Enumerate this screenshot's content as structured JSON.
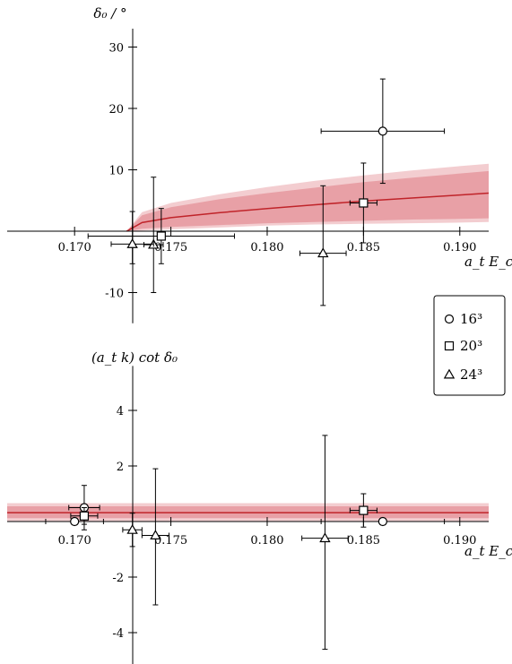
{
  "chart_data": [
    {
      "type": "scatter",
      "title": "",
      "ylabel": "δ₀ / °",
      "xlabel": "a_t E_cm",
      "xlim": [
        0.1665,
        0.1915
      ],
      "ylim": [
        -15,
        33
      ],
      "x_ticks": [
        0.17,
        0.175,
        0.18,
        0.185,
        0.19
      ],
      "x_tick_labels": [
        "0.170",
        "0.175",
        "0.180",
        "0.185",
        "0.190"
      ],
      "y_ticks": [
        -10,
        10,
        20,
        30
      ],
      "y_tick_labels": [
        "-10",
        "10",
        "20",
        "30"
      ],
      "grid": false,
      "band_color": "#e8a0a6",
      "outer_band_color": "#f3cdd0",
      "line_color": "#c0242a",
      "fit": {
        "x": [
          0.1727,
          0.1735,
          0.175,
          0.1775,
          0.18,
          0.1825,
          0.185,
          0.1875,
          0.19,
          0.1915
        ],
        "y": [
          0.0,
          1.4,
          2.2,
          3.0,
          3.7,
          4.3,
          4.9,
          5.4,
          5.9,
          6.2
        ],
        "band_inner_low": [
          0.0,
          0.4,
          0.7,
          1.0,
          1.3,
          1.5,
          1.7,
          1.9,
          2.0,
          2.1
        ],
        "band_inner_high": [
          0.0,
          2.6,
          3.9,
          5.2,
          6.2,
          7.1,
          8.0,
          8.7,
          9.4,
          9.8
        ],
        "band_outer_low": [
          0.0,
          0.1,
          0.3,
          0.6,
          0.9,
          1.1,
          1.2,
          1.3,
          1.4,
          1.5
        ],
        "band_outer_high": [
          0.0,
          3.1,
          4.6,
          6.0,
          7.2,
          8.2,
          9.1,
          9.9,
          10.6,
          11.0
        ]
      },
      "series": [
        {
          "name": "16³",
          "marker": "circle",
          "points": [
            {
              "x": 0.186,
              "y": 16.3,
              "xerr": 0.0032,
              "yerr_low": 8.5,
              "yerr_high": 8.5
            }
          ]
        },
        {
          "name": "20³",
          "marker": "square",
          "points": [
            {
              "x": 0.185,
              "y": 4.6,
              "xerr": 0.0007,
              "yerr_low": 6.5,
              "yerr_high": 6.5
            },
            {
              "x": 0.1745,
              "y": -0.8,
              "xerr": 0.0038,
              "yerr_low": 4.5,
              "yerr_high": 4.5
            }
          ]
        },
        {
          "name": "24³",
          "marker": "triangle",
          "points": [
            {
              "x": 0.1741,
              "y": -2.2,
              "xerr": 0.0005,
              "yerr_low": 7.8,
              "yerr_high": 11.0
            },
            {
              "x": 0.173,
              "y": -2.1,
              "xerr": 0.0011,
              "yerr_low": 3.2,
              "yerr_high": 5.3
            },
            {
              "x": 0.1829,
              "y": -3.6,
              "xerr": 0.0012,
              "yerr_low": 8.5,
              "yerr_high": 11.0
            }
          ]
        }
      ]
    },
    {
      "type": "scatter",
      "title": "",
      "ylabel": "(a_t k) cot δ₀",
      "xlabel": "a_t E_cm",
      "xlim": [
        0.1665,
        0.1915
      ],
      "ylim": [
        -5.2,
        5.6
      ],
      "x_ticks": [
        0.17,
        0.175,
        0.18,
        0.185,
        0.19
      ],
      "x_tick_labels": [
        "0.170",
        "0.175",
        "0.180",
        "0.185",
        "0.190"
      ],
      "y_ticks": [
        -4,
        -2,
        2,
        4
      ],
      "y_tick_labels": [
        "-4",
        "-2",
        "2",
        "4"
      ],
      "grid": false,
      "band_color": "#e8a0a6",
      "outer_band_color": "#f3cdd0",
      "line_color": "#c0242a",
      "fit": {
        "x": [
          0.1665,
          0.1915
        ],
        "y": [
          0.32,
          0.32
        ],
        "band_inner_low": [
          0.12,
          0.12
        ],
        "band_inner_high": [
          0.55,
          0.55
        ],
        "band_outer_low": [
          0.02,
          0.02
        ],
        "band_outer_high": [
          0.66,
          0.66
        ]
      },
      "series": [
        {
          "name": "16³",
          "marker": "circle",
          "points": [
            {
              "x": 0.17,
              "y": 0.0,
              "xerr": 0.0015,
              "yerr_low": 0.1,
              "yerr_high": 0.1
            },
            {
              "x": 0.1705,
              "y": 0.5,
              "xerr": 0.0008,
              "yerr_low": 0.8,
              "yerr_high": 0.8
            },
            {
              "x": 0.186,
              "y": 0.0,
              "xerr": 0.0032,
              "yerr_low": 0.1,
              "yerr_high": 0.1
            }
          ]
        },
        {
          "name": "20³",
          "marker": "square",
          "points": [
            {
              "x": 0.185,
              "y": 0.4,
              "xerr": 0.0007,
              "yerr_low": 0.6,
              "yerr_high": 0.6
            },
            {
              "x": 0.1705,
              "y": 0.2,
              "xerr": 0.0007,
              "yerr_low": 0.3,
              "yerr_high": 0.3
            }
          ]
        },
        {
          "name": "24³",
          "marker": "triangle",
          "points": [
            {
              "x": 0.173,
              "y": -0.3,
              "xerr": 0.0005,
              "yerr_low": 0.6,
              "yerr_high": 0.6
            },
            {
              "x": 0.1742,
              "y": -0.5,
              "xerr": 0.0007,
              "yerr_low": 2.5,
              "yerr_high": 2.4
            },
            {
              "x": 0.183,
              "y": -0.6,
              "xerr": 0.0012,
              "yerr_low": 4.0,
              "yerr_high": 3.7
            }
          ]
        }
      ]
    }
  ],
  "legend": {
    "entries": [
      {
        "marker": "circle",
        "label": "16³"
      },
      {
        "marker": "square",
        "label": "20³"
      },
      {
        "marker": "triangle",
        "label": "24³"
      }
    ]
  }
}
